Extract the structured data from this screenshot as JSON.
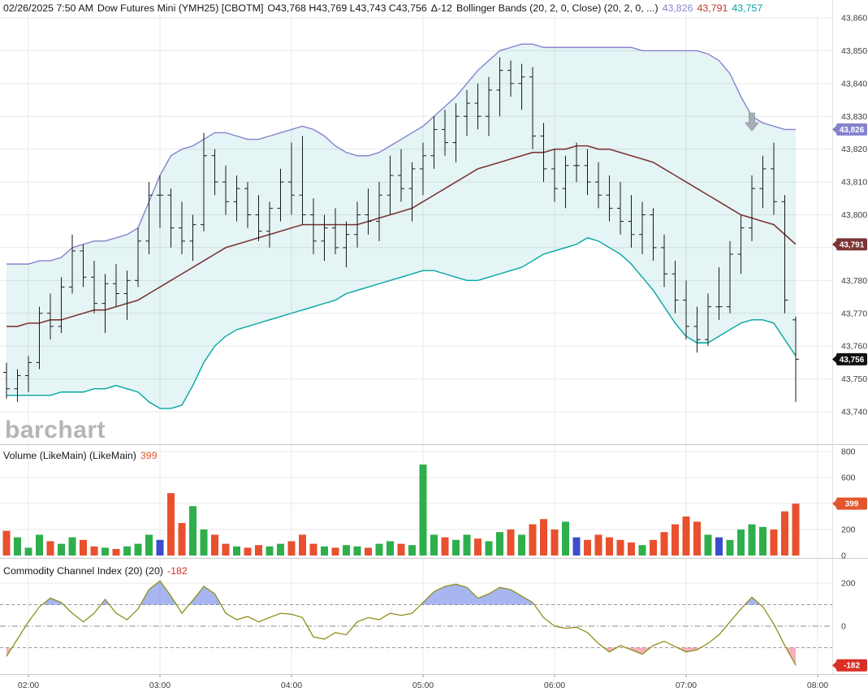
{
  "header": {
    "datetime": "02/26/2025 7:50 AM",
    "symbol": "Dow Futures Mini (YMH25) [CBOTM]",
    "ohlc": "O43,768 H43,769 L43,743 C43,756",
    "change": "Δ-12",
    "study": "Bollinger Bands (20, 2, 0, Close)  (20, 2, 0, ...)",
    "band_values": {
      "upper": "43,826",
      "middle": "43,791",
      "lower": "43,757"
    }
  },
  "volume_panel": {
    "label": "Volume (LikeMain)  (LikeMain)",
    "value": "399"
  },
  "cci_panel": {
    "label": "Commodity Channel Index (20)  (20)",
    "value": "-182"
  },
  "watermark": "barchart",
  "chart_data": {
    "type": "ohlc+bollinger+volume+cci",
    "title": "Dow Futures Mini (YMH25) [CBOTM] 5-minute bars with Bollinger Bands (20,2,0,Close), Volume and CCI(20)",
    "x_labels": [
      "02:00",
      "03:00",
      "04:00",
      "05:00",
      "06:00",
      "07:00",
      "08:00"
    ],
    "main_axis": {
      "min": 43740,
      "max": 43860,
      "step": 10
    },
    "volume_axis": {
      "min": 0,
      "max": 800,
      "step": 200
    },
    "cci_axis": {
      "labels": [
        200,
        0
      ],
      "guides": [
        100,
        -100
      ]
    },
    "last_bar": {
      "open": 43768,
      "high": 43769,
      "low": 43743,
      "close": 43756,
      "change": -12,
      "volume": 399,
      "cci": -182
    },
    "badges": {
      "upper_band": {
        "text": "43,826",
        "price": 43826,
        "bg": "#8583cf"
      },
      "middle_band": {
        "text": "43,791",
        "price": 43791,
        "bg": "#7b3535"
      },
      "last_price": {
        "text": "43,756",
        "price": 43756,
        "bg": "#111111"
      },
      "volume": {
        "text": "399",
        "value": 399,
        "bg": "#e4572e"
      },
      "cci": {
        "text": "-182",
        "value": -182,
        "bg": "#d93025"
      }
    },
    "annotations": [
      {
        "type": "down-arrow",
        "bar_index": 68,
        "price": 43831
      }
    ],
    "colors": {
      "upper_band": "#8583cf",
      "middle_band": "#7b3535",
      "lower_band": "#00a5a5",
      "band_fill": "rgba(0,150,150,0.10)",
      "bar": "#1a1a1a",
      "vol_up": "#2eaf4c",
      "vol_down": "#e8502e",
      "vol_neutral": "#3b4ccc",
      "cci_line": "#8f8f1f",
      "cci_fill_high": "rgba(80,110,225,0.50)",
      "cci_fill_low": "rgba(235,80,100,0.45)",
      "grid": "#e8e8e8",
      "axis_text": "#3c3c3c",
      "arrow": "#a6adb5"
    },
    "bars_schema": [
      "time",
      "open",
      "high",
      "low",
      "close",
      "volume",
      "bb_upper",
      "bb_middle",
      "bb_lower",
      "cci"
    ],
    "bars": [
      [
        "01:50",
        43752,
        43755,
        43744,
        43747,
        190,
        43785,
        43766,
        43745,
        -140
      ],
      [
        "01:55",
        43747,
        43753,
        43743,
        43751,
        140,
        43785,
        43766,
        43745,
        -60
      ],
      [
        "02:00",
        43751,
        43757,
        43746,
        43755,
        60,
        43785,
        43767,
        43745,
        20
      ],
      [
        "02:05",
        43755,
        43772,
        43753,
        43770,
        160,
        43786,
        43767,
        43745,
        90
      ],
      [
        "02:10",
        43770,
        43776,
        43762,
        43766,
        110,
        43786,
        43768,
        43745,
        130
      ],
      [
        "02:15",
        43766,
        43781,
        43764,
        43778,
        90,
        43787,
        43768,
        43746,
        110
      ],
      [
        "02:20",
        43778,
        43794,
        43776,
        43789,
        140,
        43790,
        43769,
        43746,
        60
      ],
      [
        "02:25",
        43789,
        43791,
        43778,
        43781,
        120,
        43791,
        43770,
        43746,
        20
      ],
      [
        "02:30",
        43781,
        43786,
        43770,
        43773,
        70,
        43792,
        43771,
        43747,
        60
      ],
      [
        "02:35",
        43773,
        43782,
        43764,
        43779,
        60,
        43792,
        43771,
        43747,
        125
      ],
      [
        "02:40",
        43779,
        43785,
        43772,
        43776,
        50,
        43793,
        43772,
        43748,
        60
      ],
      [
        "02:45",
        43776,
        43783,
        43768,
        43780,
        70,
        43794,
        43773,
        43747,
        30
      ],
      [
        "02:50",
        43780,
        43796,
        43778,
        43792,
        90,
        43796,
        43774,
        43746,
        80
      ],
      [
        "02:55",
        43792,
        43810,
        43788,
        43806,
        160,
        43804,
        43776,
        43743,
        170
      ],
      [
        "03:00",
        43806,
        43812,
        43796,
        43806,
        120,
        43812,
        43778,
        43741,
        210
      ],
      [
        "03:05",
        43806,
        43808,
        43790,
        43796,
        480,
        43818,
        43780,
        43741,
        140
      ],
      [
        "03:10",
        43796,
        43804,
        43788,
        43792,
        250,
        43820,
        43782,
        43742,
        60
      ],
      [
        "03:15",
        43792,
        43800,
        43786,
        43797,
        380,
        43821,
        43784,
        43748,
        120
      ],
      [
        "03:20",
        43797,
        43825,
        43795,
        43818,
        200,
        43823,
        43786,
        43755,
        185
      ],
      [
        "03:25",
        43818,
        43820,
        43806,
        43810,
        160,
        43825,
        43788,
        43760,
        150
      ],
      [
        "03:30",
        43810,
        43815,
        43800,
        43804,
        90,
        43825,
        43790,
        43763,
        60
      ],
      [
        "03:35",
        43804,
        43812,
        43798,
        43808,
        70,
        43824,
        43791,
        43765,
        30
      ],
      [
        "03:40",
        43808,
        43810,
        43796,
        43800,
        60,
        43823,
        43792,
        43766,
        45
      ],
      [
        "03:45",
        43800,
        43806,
        43792,
        43795,
        80,
        43823,
        43793,
        43767,
        20
      ],
      [
        "03:50",
        43795,
        43804,
        43790,
        43802,
        70,
        43824,
        43794,
        43768,
        40
      ],
      [
        "03:55",
        43802,
        43814,
        43798,
        43810,
        90,
        43825,
        43795,
        43769,
        60
      ],
      [
        "04:00",
        43810,
        43822,
        43800,
        43806,
        110,
        43826,
        43796,
        43770,
        55
      ],
      [
        "04:05",
        43806,
        43824,
        43797,
        43800,
        160,
        43827,
        43797,
        43771,
        40
      ],
      [
        "04:10",
        43800,
        43805,
        43788,
        43792,
        90,
        43826,
        43797,
        43772,
        -50
      ],
      [
        "04:15",
        43792,
        43800,
        43786,
        43796,
        70,
        43824,
        43797,
        43773,
        -60
      ],
      [
        "04:20",
        43796,
        43802,
        43788,
        43790,
        60,
        43821,
        43797,
        43774,
        -30
      ],
      [
        "04:25",
        43790,
        43798,
        43784,
        43794,
        80,
        43819,
        43797,
        43776,
        -40
      ],
      [
        "04:30",
        43794,
        43804,
        43790,
        43800,
        70,
        43818,
        43797,
        43777,
        20
      ],
      [
        "04:35",
        43800,
        43808,
        43794,
        43798,
        60,
        43818,
        43798,
        43778,
        40
      ],
      [
        "04:40",
        43798,
        43810,
        43792,
        43806,
        90,
        43819,
        43799,
        43779,
        30
      ],
      [
        "04:45",
        43806,
        43818,
        43800,
        43812,
        110,
        43821,
        43800,
        43780,
        60
      ],
      [
        "04:50",
        43812,
        43820,
        43804,
        43808,
        90,
        43823,
        43801,
        43781,
        50
      ],
      [
        "04:55",
        43808,
        43816,
        43798,
        43814,
        80,
        43825,
        43802,
        43782,
        60
      ],
      [
        "05:00",
        43814,
        43822,
        43806,
        43818,
        700,
        43827,
        43804,
        43783,
        110
      ],
      [
        "05:05",
        43818,
        43830,
        43814,
        43826,
        160,
        43830,
        43806,
        43783,
        160
      ],
      [
        "05:10",
        43826,
        43832,
        43818,
        43822,
        140,
        43833,
        43808,
        43782,
        185
      ],
      [
        "05:15",
        43822,
        43834,
        43816,
        43830,
        120,
        43836,
        43810,
        43781,
        195
      ],
      [
        "05:20",
        43830,
        43838,
        43824,
        43834,
        160,
        43840,
        43812,
        43780,
        180
      ],
      [
        "05:25",
        43834,
        43840,
        43826,
        43830,
        130,
        43844,
        43814,
        43780,
        130
      ],
      [
        "05:30",
        43830,
        43842,
        43824,
        43838,
        110,
        43847,
        43815,
        43781,
        150
      ],
      [
        "05:35",
        43838,
        43848,
        43830,
        43844,
        180,
        43850,
        43816,
        43782,
        180
      ],
      [
        "05:40",
        43844,
        43847,
        43836,
        43840,
        200,
        43851,
        43817,
        43783,
        170
      ],
      [
        "05:45",
        43840,
        43846,
        43832,
        43842,
        160,
        43852,
        43818,
        43784,
        140
      ],
      [
        "05:50",
        43842,
        43845,
        43820,
        43824,
        240,
        43852,
        43819,
        43786,
        110
      ],
      [
        "05:55",
        43824,
        43828,
        43810,
        43814,
        280,
        43851,
        43819,
        43788,
        40
      ],
      [
        "06:00",
        43814,
        43820,
        43804,
        43808,
        200,
        43851,
        43820,
        43789,
        0
      ],
      [
        "06:05",
        43808,
        43818,
        43802,
        43815,
        260,
        43851,
        43820,
        43790,
        -10
      ],
      [
        "06:10",
        43815,
        43822,
        43810,
        43815,
        140,
        43851,
        43821,
        43791,
        -5
      ],
      [
        "06:15",
        43815,
        43820,
        43806,
        43810,
        120,
        43851,
        43821,
        43793,
        -30
      ],
      [
        "06:20",
        43810,
        43816,
        43802,
        43806,
        160,
        43851,
        43820,
        43792,
        -80
      ],
      [
        "06:25",
        43806,
        43812,
        43798,
        43802,
        140,
        43851,
        43820,
        43790,
        -120
      ],
      [
        "06:30",
        43802,
        43810,
        43794,
        43798,
        120,
        43851,
        43819,
        43788,
        -90
      ],
      [
        "06:35",
        43798,
        43806,
        43790,
        43794,
        100,
        43851,
        43818,
        43785,
        -110
      ],
      [
        "06:40",
        43794,
        43804,
        43788,
        43800,
        80,
        43850,
        43817,
        43781,
        -130
      ],
      [
        "06:45",
        43800,
        43802,
        43786,
        43790,
        120,
        43850,
        43816,
        43777,
        -90
      ],
      [
        "06:50",
        43790,
        43794,
        43778,
        43782,
        180,
        43850,
        43814,
        43772,
        -70
      ],
      [
        "06:55",
        43782,
        43786,
        43770,
        43774,
        240,
        43850,
        43812,
        43767,
        -95
      ],
      [
        "07:00",
        43774,
        43780,
        43762,
        43766,
        300,
        43850,
        43810,
        43763,
        -120
      ],
      [
        "07:05",
        43766,
        43772,
        43758,
        43762,
        260,
        43850,
        43808,
        43761,
        -110
      ],
      [
        "07:10",
        43762,
        43776,
        43760,
        43772,
        160,
        43849,
        43806,
        43761,
        -80
      ],
      [
        "07:15",
        43772,
        43784,
        43768,
        43772,
        140,
        43847,
        43804,
        43763,
        -40
      ],
      [
        "07:20",
        43772,
        43792,
        43770,
        43788,
        120,
        43843,
        43802,
        43765,
        20
      ],
      [
        "07:25",
        43788,
        43800,
        43782,
        43796,
        200,
        43836,
        43800,
        43767,
        80
      ],
      [
        "07:30",
        43796,
        43812,
        43792,
        43808,
        240,
        43830,
        43799,
        43768,
        135
      ],
      [
        "07:35",
        43808,
        43818,
        43802,
        43814,
        220,
        43828,
        43798,
        43768,
        90
      ],
      [
        "07:40",
        43814,
        43822,
        43800,
        43804,
        200,
        43827,
        43797,
        43767,
        10
      ],
      [
        "07:45",
        43804,
        43806,
        43770,
        43774,
        340,
        43826,
        43794,
        43762,
        -90
      ],
      [
        "07:50",
        43768,
        43769,
        43743,
        43756,
        399,
        43826,
        43791,
        43757,
        -182
      ]
    ]
  }
}
